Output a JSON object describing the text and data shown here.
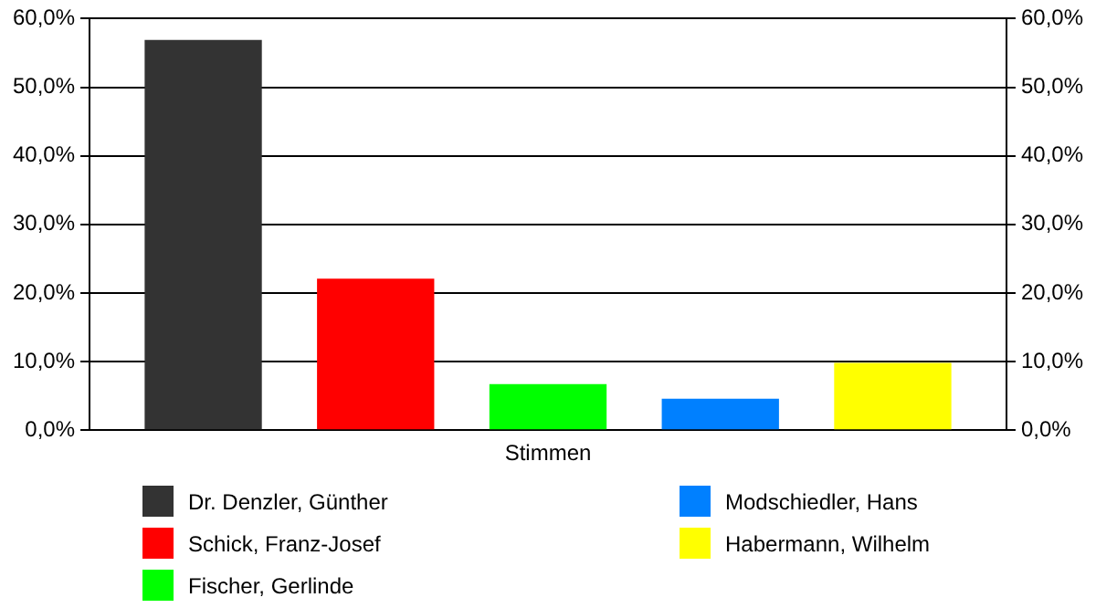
{
  "chart_data": {
    "type": "bar",
    "categories": [
      "Stimmen"
    ],
    "series": [
      {
        "name": "Dr. Denzler, Günther",
        "color": "#333333",
        "values": [
          56.9
        ]
      },
      {
        "name": "Schick, Franz-Josef",
        "color": "#ff0000",
        "values": [
          22.1
        ]
      },
      {
        "name": "Fischer, Gerlinde",
        "color": "#00ff00",
        "values": [
          6.7
        ]
      },
      {
        "name": "Modschiedler, Hans",
        "color": "#0080ff",
        "values": [
          4.6
        ]
      },
      {
        "name": "Habermann, Wilhelm",
        "color": "#ffff00",
        "values": [
          9.8
        ]
      }
    ],
    "ylim": [
      0,
      60
    ],
    "yticks": [
      {
        "value": 0,
        "label": "0,0%"
      },
      {
        "value": 10,
        "label": "10,0%"
      },
      {
        "value": 20,
        "label": "20,0%"
      },
      {
        "value": 30,
        "label": "30,0%"
      },
      {
        "value": 40,
        "label": "40,0%"
      },
      {
        "value": 50,
        "label": "50,0%"
      },
      {
        "value": 60,
        "label": "60,0%"
      }
    ],
    "grid": "y",
    "legend": "bottom"
  }
}
